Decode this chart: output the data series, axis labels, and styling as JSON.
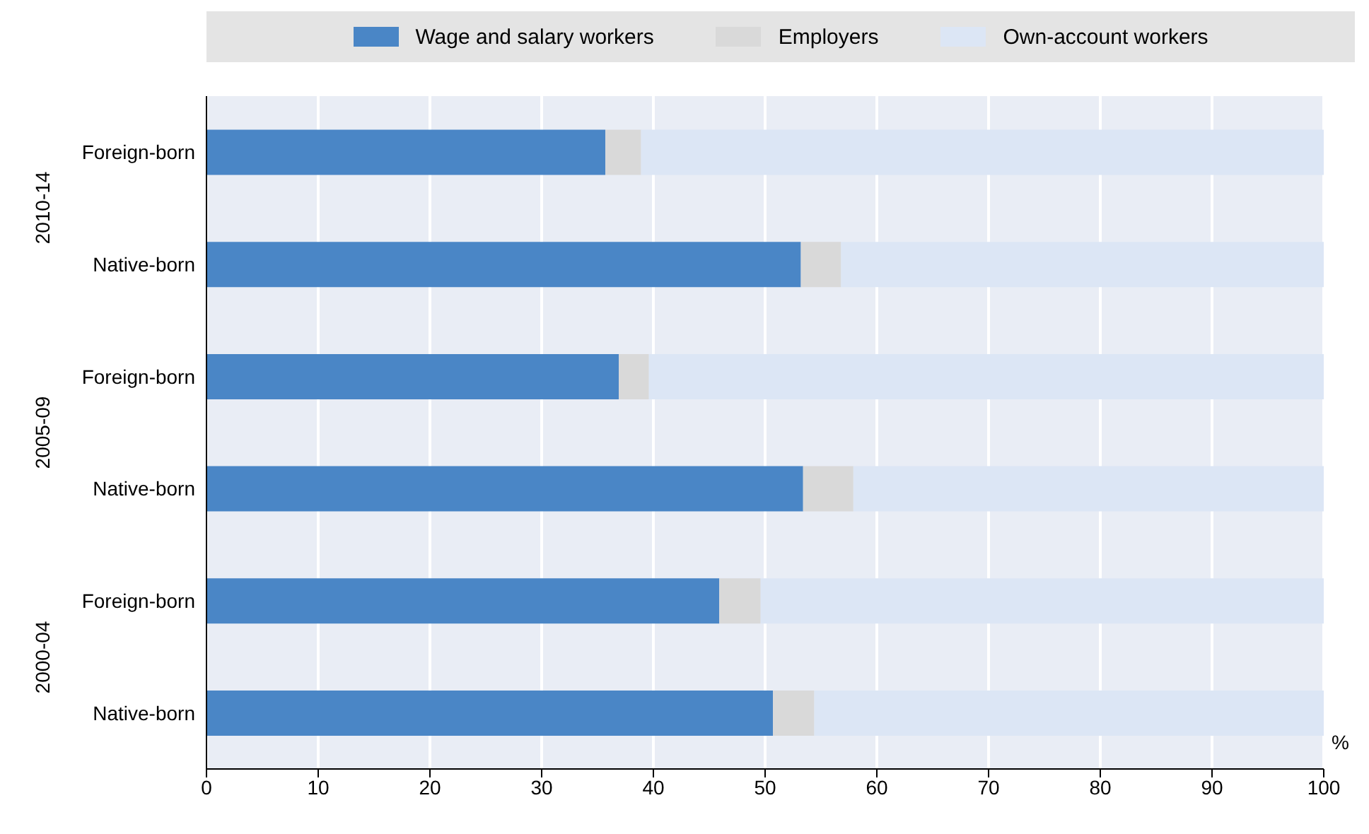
{
  "chart_data": {
    "type": "bar",
    "orientation": "horizontal",
    "stacked": true,
    "xlabel": "%",
    "categories": [
      "Foreign-born",
      "Native-born",
      "Foreign-born",
      "Native-born",
      "Foreign-born",
      "Native-born"
    ],
    "annotations": [
      "2010-14",
      "2005-09",
      "2000-04"
    ],
    "series": [
      {
        "name": "Wage and salary workers",
        "color": "#4a86c6",
        "values": [
          35.7,
          53.2,
          36.9,
          53.4,
          45.9,
          50.7
        ]
      },
      {
        "name": "Employers",
        "color": "#d9d9d9",
        "values": [
          3.2,
          3.6,
          2.7,
          4.5,
          3.7,
          3.7
        ]
      },
      {
        "name": "Own-account workers",
        "color": "#dce6f5",
        "values": [
          61.1,
          43.2,
          60.4,
          42.1,
          50.4,
          45.6
        ]
      }
    ],
    "xlim": [
      0,
      100
    ],
    "xticks": [
      0,
      10,
      20,
      30,
      40,
      50,
      60,
      70,
      80,
      90,
      100
    ],
    "grid": "x",
    "legend": "top"
  }
}
